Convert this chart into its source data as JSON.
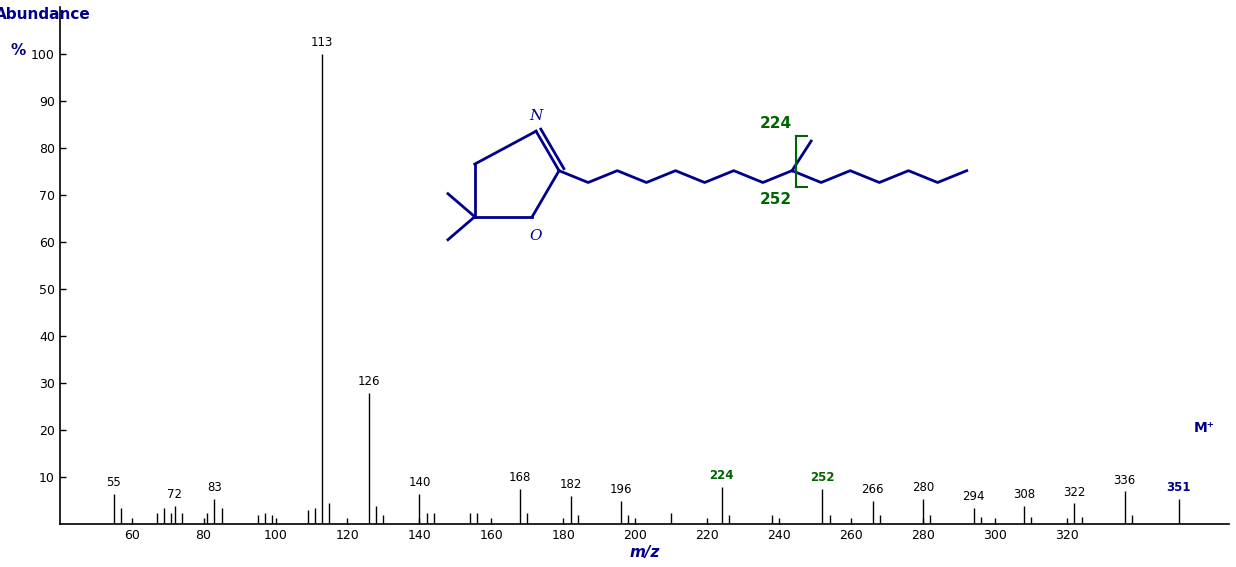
{
  "peaks": [
    {
      "mz": 55,
      "intensity": 6.5,
      "label": "55",
      "label_color": "black",
      "bold": false
    },
    {
      "mz": 57,
      "intensity": 3.5,
      "label": "",
      "label_color": "black",
      "bold": false
    },
    {
      "mz": 67,
      "intensity": 2.5,
      "label": "",
      "label_color": "black",
      "bold": false
    },
    {
      "mz": 69,
      "intensity": 3.5,
      "label": "",
      "label_color": "black",
      "bold": false
    },
    {
      "mz": 71,
      "intensity": 2.5,
      "label": "",
      "label_color": "black",
      "bold": false
    },
    {
      "mz": 72,
      "intensity": 4.0,
      "label": "72",
      "label_color": "black",
      "bold": false
    },
    {
      "mz": 74,
      "intensity": 2.5,
      "label": "",
      "label_color": "black",
      "bold": false
    },
    {
      "mz": 81,
      "intensity": 2.5,
      "label": "",
      "label_color": "black",
      "bold": false
    },
    {
      "mz": 83,
      "intensity": 5.5,
      "label": "83",
      "label_color": "black",
      "bold": false
    },
    {
      "mz": 85,
      "intensity": 3.5,
      "label": "",
      "label_color": "black",
      "bold": false
    },
    {
      "mz": 95,
      "intensity": 2.0,
      "label": "",
      "label_color": "black",
      "bold": false
    },
    {
      "mz": 97,
      "intensity": 2.5,
      "label": "",
      "label_color": "black",
      "bold": false
    },
    {
      "mz": 99,
      "intensity": 2.0,
      "label": "",
      "label_color": "black",
      "bold": false
    },
    {
      "mz": 109,
      "intensity": 3.0,
      "label": "",
      "label_color": "black",
      "bold": false
    },
    {
      "mz": 111,
      "intensity": 3.5,
      "label": "",
      "label_color": "black",
      "bold": false
    },
    {
      "mz": 113,
      "intensity": 100.0,
      "label": "113",
      "label_color": "black",
      "bold": false
    },
    {
      "mz": 115,
      "intensity": 4.5,
      "label": "",
      "label_color": "black",
      "bold": false
    },
    {
      "mz": 126,
      "intensity": 28.0,
      "label": "126",
      "label_color": "black",
      "bold": false
    },
    {
      "mz": 128,
      "intensity": 4.0,
      "label": "",
      "label_color": "black",
      "bold": false
    },
    {
      "mz": 130,
      "intensity": 2.0,
      "label": "",
      "label_color": "black",
      "bold": false
    },
    {
      "mz": 140,
      "intensity": 6.5,
      "label": "140",
      "label_color": "black",
      "bold": false
    },
    {
      "mz": 142,
      "intensity": 2.5,
      "label": "",
      "label_color": "black",
      "bold": false
    },
    {
      "mz": 144,
      "intensity": 2.5,
      "label": "",
      "label_color": "black",
      "bold": false
    },
    {
      "mz": 154,
      "intensity": 2.5,
      "label": "",
      "label_color": "black",
      "bold": false
    },
    {
      "mz": 156,
      "intensity": 2.5,
      "label": "",
      "label_color": "black",
      "bold": false
    },
    {
      "mz": 168,
      "intensity": 7.5,
      "label": "168",
      "label_color": "black",
      "bold": false
    },
    {
      "mz": 170,
      "intensity": 2.5,
      "label": "",
      "label_color": "black",
      "bold": false
    },
    {
      "mz": 182,
      "intensity": 6.0,
      "label": "182",
      "label_color": "black",
      "bold": false
    },
    {
      "mz": 184,
      "intensity": 2.0,
      "label": "",
      "label_color": "black",
      "bold": false
    },
    {
      "mz": 196,
      "intensity": 5.0,
      "label": "196",
      "label_color": "black",
      "bold": false
    },
    {
      "mz": 198,
      "intensity": 2.0,
      "label": "",
      "label_color": "black",
      "bold": false
    },
    {
      "mz": 210,
      "intensity": 2.5,
      "label": "",
      "label_color": "black",
      "bold": false
    },
    {
      "mz": 224,
      "intensity": 8.0,
      "label": "224",
      "label_color": "#006400",
      "bold": true
    },
    {
      "mz": 226,
      "intensity": 2.0,
      "label": "",
      "label_color": "black",
      "bold": false
    },
    {
      "mz": 238,
      "intensity": 2.0,
      "label": "",
      "label_color": "black",
      "bold": false
    },
    {
      "mz": 252,
      "intensity": 7.5,
      "label": "252",
      "label_color": "#006400",
      "bold": true
    },
    {
      "mz": 254,
      "intensity": 2.0,
      "label": "",
      "label_color": "black",
      "bold": false
    },
    {
      "mz": 266,
      "intensity": 5.0,
      "label": "266",
      "label_color": "black",
      "bold": false
    },
    {
      "mz": 268,
      "intensity": 2.0,
      "label": "",
      "label_color": "black",
      "bold": false
    },
    {
      "mz": 280,
      "intensity": 5.5,
      "label": "280",
      "label_color": "black",
      "bold": false
    },
    {
      "mz": 282,
      "intensity": 2.0,
      "label": "",
      "label_color": "black",
      "bold": false
    },
    {
      "mz": 294,
      "intensity": 3.5,
      "label": "294",
      "label_color": "black",
      "bold": false
    },
    {
      "mz": 296,
      "intensity": 1.5,
      "label": "",
      "label_color": "black",
      "bold": false
    },
    {
      "mz": 308,
      "intensity": 4.0,
      "label": "308",
      "label_color": "black",
      "bold": false
    },
    {
      "mz": 310,
      "intensity": 1.5,
      "label": "",
      "label_color": "black",
      "bold": false
    },
    {
      "mz": 322,
      "intensity": 4.5,
      "label": "322",
      "label_color": "black",
      "bold": false
    },
    {
      "mz": 324,
      "intensity": 1.5,
      "label": "",
      "label_color": "black",
      "bold": false
    },
    {
      "mz": 336,
      "intensity": 7.0,
      "label": "336",
      "label_color": "black",
      "bold": false
    },
    {
      "mz": 338,
      "intensity": 2.0,
      "label": "",
      "label_color": "black",
      "bold": false
    },
    {
      "mz": 351,
      "intensity": 5.5,
      "label": "351",
      "label_color": "#00008B",
      "bold": true
    }
  ],
  "xlabel": "m/z",
  "ylabel": "Abundance\n%",
  "ylabel_color": "#00008B",
  "xlabel_color": "#00008B",
  "xlim": [
    40,
    365
  ],
  "ylim": [
    0,
    110
  ],
  "xticks": [
    60,
    80,
    100,
    120,
    140,
    160,
    180,
    200,
    220,
    240,
    260,
    280,
    300,
    320
  ],
  "yticks": [
    10,
    20,
    30,
    40,
    50,
    60,
    70,
    80,
    90,
    100
  ],
  "bar_color": "black",
  "background_color": "white",
  "mplus_color": "#00008B",
  "blue": "#00008B",
  "green": "#006400"
}
